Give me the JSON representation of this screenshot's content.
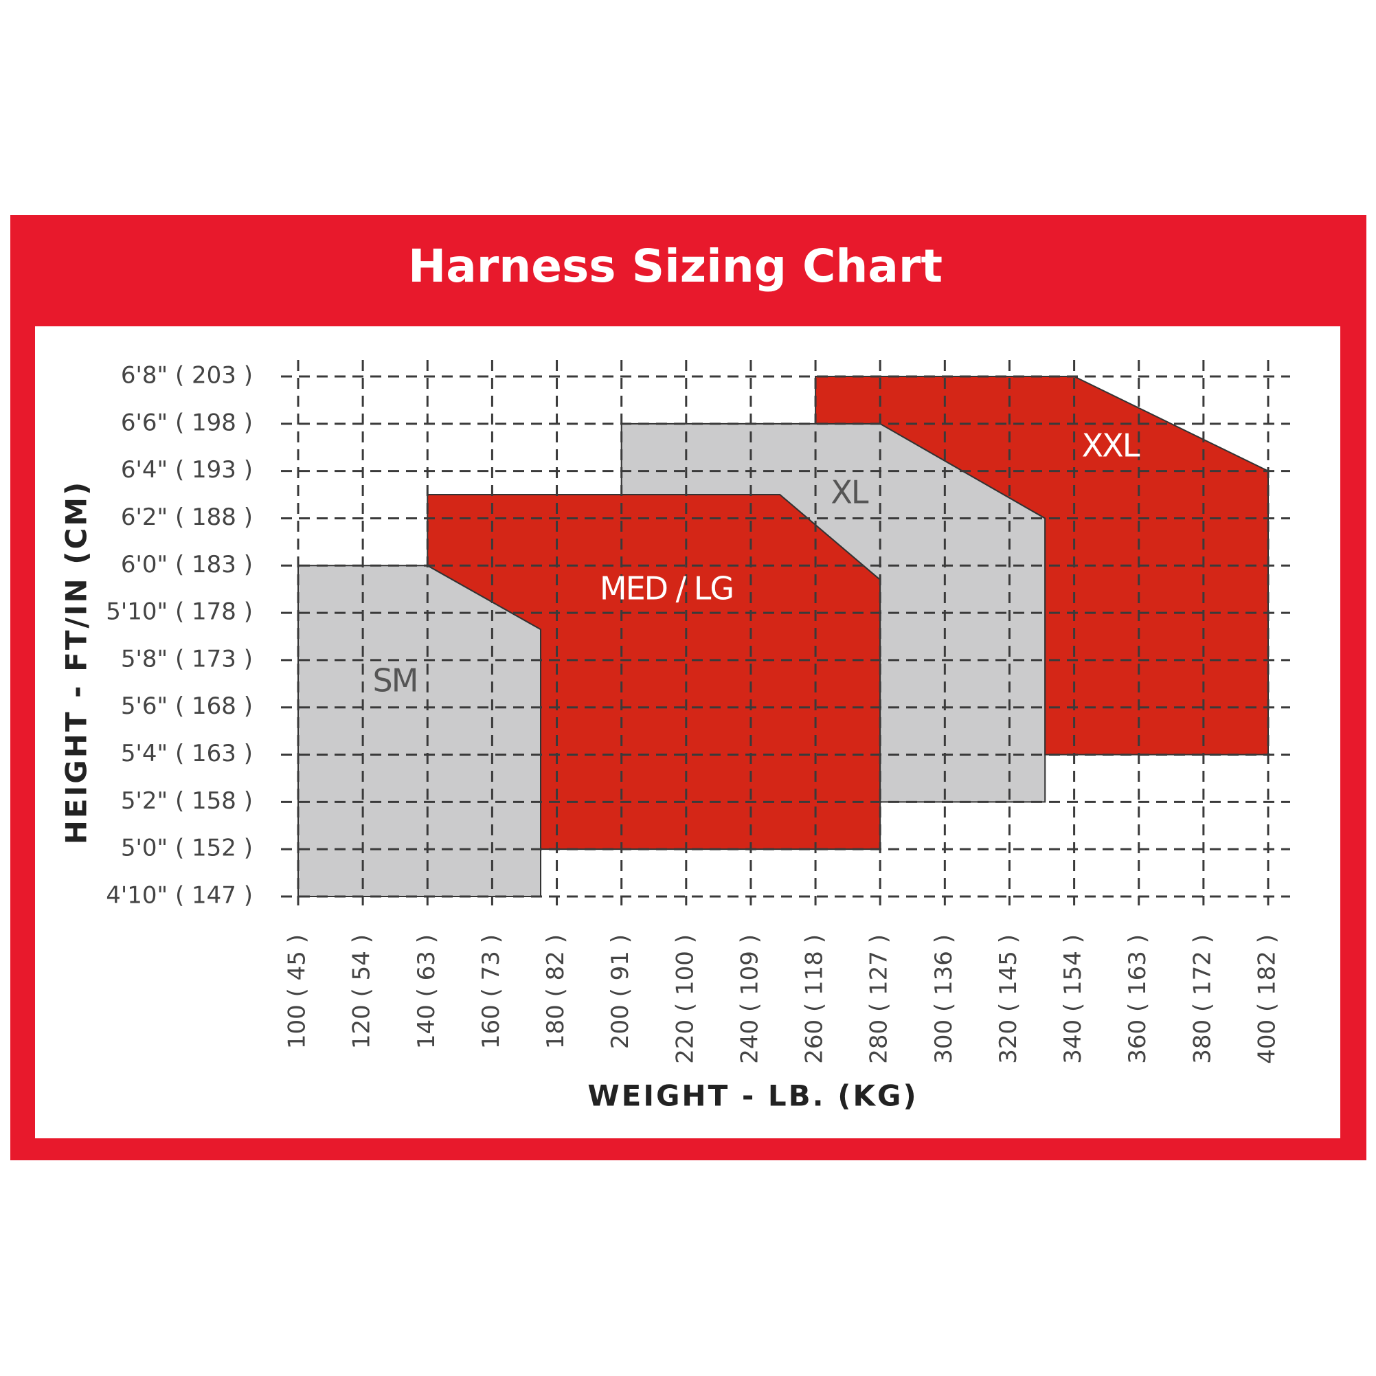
{
  "chart_data": {
    "type": "region",
    "title": "Harness Sizing Chart",
    "x_label": "WEIGHT - LB. (KG)",
    "y_label": "HEIGHT - FT/IN (CM)",
    "xlim": [
      100,
      400
    ],
    "ylim": [
      58,
      80
    ],
    "xticks": [
      {
        "value": 100,
        "label": "100 ( 45 )"
      },
      {
        "value": 120,
        "label": "120 ( 54 )"
      },
      {
        "value": 140,
        "label": "140 ( 63 )"
      },
      {
        "value": 160,
        "label": "160 ( 73 )"
      },
      {
        "value": 180,
        "label": "180 ( 82 )"
      },
      {
        "value": 200,
        "label": "200 ( 91 )"
      },
      {
        "value": 220,
        "label": "220 ( 100 )"
      },
      {
        "value": 240,
        "label": "240 ( 109 )"
      },
      {
        "value": 260,
        "label": "260 ( 118 )"
      },
      {
        "value": 280,
        "label": "280 ( 127 )"
      },
      {
        "value": 300,
        "label": "300 ( 136 )"
      },
      {
        "value": 320,
        "label": "320 ( 145 )"
      },
      {
        "value": 340,
        "label": "340 ( 154 )"
      },
      {
        "value": 360,
        "label": "360 ( 163 )"
      },
      {
        "value": 380,
        "label": "380 ( 172 )"
      },
      {
        "value": 400,
        "label": "400 ( 182 )"
      }
    ],
    "yticks": [
      {
        "value": 80,
        "label": "6'8\" ( 203 )"
      },
      {
        "value": 78,
        "label": "6'6\" ( 198 )"
      },
      {
        "value": 76,
        "label": "6'4\" ( 193 )"
      },
      {
        "value": 74,
        "label": "6'2\" ( 188 )"
      },
      {
        "value": 72,
        "label": "6'0\" ( 183 )"
      },
      {
        "value": 70,
        "label": "5'10\" ( 178 )"
      },
      {
        "value": 68,
        "label": "5'8\" ( 173 )"
      },
      {
        "value": 66,
        "label": "5'6\" ( 168 )"
      },
      {
        "value": 64,
        "label": "5'4\" ( 163 )"
      },
      {
        "value": 62,
        "label": "5'2\" ( 158 )"
      },
      {
        "value": 60,
        "label": "5'0\" ( 152 )"
      },
      {
        "value": 58,
        "label": "4'10\" ( 147 )"
      }
    ],
    "grid": true,
    "series": [
      {
        "name": "SM",
        "color": "#cbcbcc",
        "label_color": "#555555",
        "x": [
          100,
          100,
          140,
          175,
          175
        ],
        "values": [
          58,
          72,
          72,
          69.3,
          58
        ]
      },
      {
        "name": "MED / LG",
        "color": "#d42617",
        "label_color": "#ffffff",
        "x": [
          140,
          140,
          249,
          280,
          280,
          175,
          175
        ],
        "values": [
          72,
          75,
          75,
          71.4,
          60,
          60,
          69.3
        ]
      },
      {
        "name": "XL",
        "color": "#cbcbcc",
        "label_color": "#555555",
        "x": [
          200,
          280,
          331,
          331,
          280,
          280,
          249,
          200
        ],
        "values": [
          78,
          78,
          74,
          62,
          62,
          71.4,
          75,
          75
        ]
      },
      {
        "name": "XXL",
        "color": "#d42617",
        "label_color": "#ffffff",
        "x": [
          260,
          340,
          400,
          400,
          331,
          331,
          280,
          260
        ],
        "values": [
          80,
          80,
          76,
          64,
          64,
          74,
          78,
          78
        ]
      }
    ]
  }
}
